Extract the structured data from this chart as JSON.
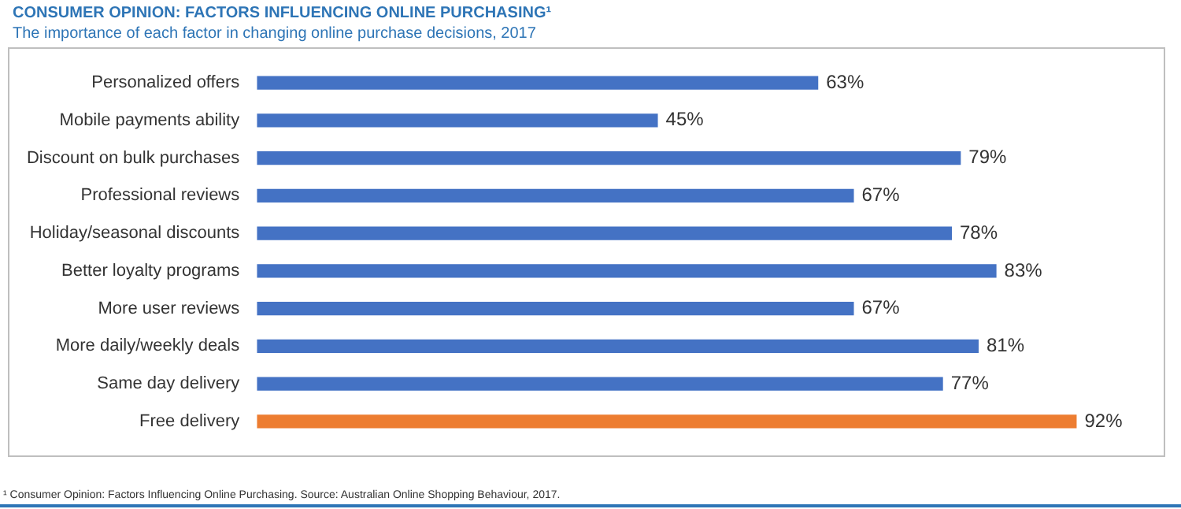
{
  "chart_data": {
    "type": "bar",
    "orientation": "horizontal",
    "title": "CONSUMER OPINION: FACTORS INFLUENCING ONLINE PURCHASING¹",
    "subtitle": "The importance of each factor in changing online purchase decisions, 2017",
    "categories": [
      "Personalized offers",
      "Mobile payments ability",
      "Discount on bulk purchases",
      "Professional reviews",
      "Holiday/seasonal discounts",
      "Better loyalty programs",
      "More user reviews",
      "More daily/weekly deals",
      "Same day delivery",
      "Free delivery"
    ],
    "values": [
      63,
      45,
      79,
      67,
      78,
      83,
      67,
      81,
      77,
      92
    ],
    "colors": [
      "#4472c4",
      "#4472c4",
      "#4472c4",
      "#4472c4",
      "#4472c4",
      "#4472c4",
      "#4472c4",
      "#4472c4",
      "#4472c4",
      "#ed7d31"
    ],
    "value_labels": [
      "63%",
      "45%",
      "79%",
      "67%",
      "78%",
      "83%",
      "67%",
      "81%",
      "77%",
      "92%"
    ],
    "tick_labels": "y",
    "grid": false,
    "legend": false,
    "annotations": [
      "¹ Consumer Opinion: Factors Influencing Online Purchasing. Source: Australian Online Shopping Behaviour, 2017."
    ]
  }
}
